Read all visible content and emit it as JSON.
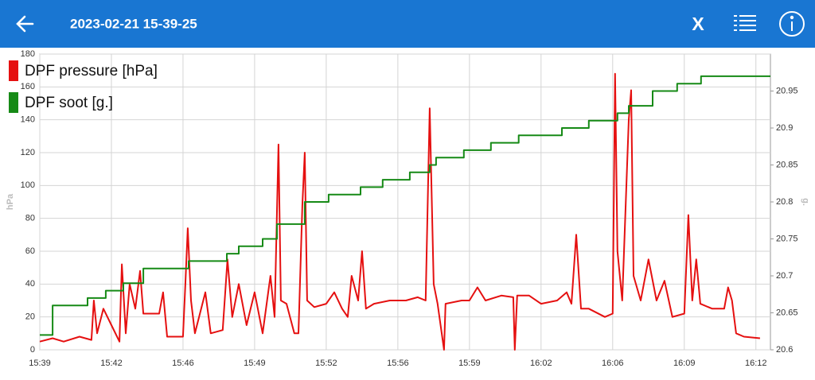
{
  "header": {
    "title": "2023-02-21 15-39-25",
    "close": "X"
  },
  "chart_data": {
    "type": "line",
    "ylabel": "hPa",
    "y2label": "g.",
    "xlim": [
      939,
      972.67
    ],
    "xticks": [
      {
        "value": 939,
        "label": "15:39"
      },
      {
        "value": 942.3,
        "label": "15:42"
      },
      {
        "value": 945.6,
        "label": "15:46"
      },
      {
        "value": 948.9,
        "label": "15:49"
      },
      {
        "value": 952.2,
        "label": "15:52"
      },
      {
        "value": 955.5,
        "label": "15:56"
      },
      {
        "value": 958.8,
        "label": "15:59"
      },
      {
        "value": 962.1,
        "label": "16:02"
      },
      {
        "value": 965.4,
        "label": "16:06"
      },
      {
        "value": 968.7,
        "label": "16:09"
      },
      {
        "value": 972.0,
        "label": "16:12"
      }
    ],
    "ylim": [
      0,
      180
    ],
    "yticks": [
      0,
      20,
      40,
      60,
      80,
      100,
      120,
      140,
      160,
      180
    ],
    "y2lim": [
      20.6,
      21.0
    ],
    "y2ticks": [
      20.6,
      20.65,
      20.7,
      20.75,
      20.8,
      20.85,
      20.9,
      20.95
    ],
    "grid": true,
    "legend": "top-left",
    "series": [
      {
        "name": "DPF pressure [hPa]",
        "color": "#e51010",
        "x": [
          939.0,
          939.59,
          940.1,
          940.83,
          941.38,
          941.49,
          941.64,
          941.93,
          942.3,
          942.67,
          942.78,
          942.96,
          943.14,
          943.4,
          943.62,
          943.77,
          944.5,
          944.68,
          944.87,
          945.6,
          945.71,
          945.82,
          945.97,
          946.15,
          946.63,
          946.88,
          947.43,
          947.65,
          947.87,
          948.17,
          948.53,
          948.9,
          949.27,
          949.63,
          949.82,
          950.0,
          950.11,
          950.37,
          950.73,
          950.92,
          951.1,
          951.21,
          951.32,
          951.65,
          952.2,
          952.57,
          952.93,
          953.19,
          953.37,
          953.67,
          953.85,
          954.03,
          954.4,
          955.13,
          955.87,
          956.42,
          956.78,
          956.97,
          957.15,
          957.33,
          957.63,
          957.7,
          958.44,
          958.8,
          959.17,
          959.54,
          960.27,
          960.82,
          960.89,
          961.0,
          961.55,
          962.1,
          962.84,
          963.28,
          963.5,
          963.72,
          963.94,
          964.3,
          965.04,
          965.4,
          965.51,
          965.62,
          965.84,
          966.14,
          966.25,
          966.36,
          966.69,
          967.05,
          967.42,
          967.79,
          968.15,
          968.7,
          968.89,
          969.07,
          969.25,
          969.44,
          969.99,
          970.54,
          970.72,
          970.9,
          971.09,
          971.45,
          972.19
        ],
        "values": [
          5,
          7,
          5,
          8,
          6,
          30,
          10,
          25,
          15,
          5,
          52,
          10,
          40,
          25,
          48,
          22,
          22,
          35,
          8,
          8,
          40,
          74,
          30,
          10,
          35,
          10,
          12,
          55,
          20,
          40,
          15,
          35,
          10,
          45,
          20,
          125,
          30,
          28,
          10,
          10,
          88,
          120,
          30,
          26,
          28,
          35,
          25,
          20,
          45,
          30,
          60,
          25,
          28,
          30,
          30,
          32,
          30,
          147,
          40,
          28,
          0,
          28,
          30,
          30,
          38,
          30,
          33,
          32,
          0,
          33,
          33,
          28,
          30,
          35,
          28,
          70,
          25,
          25,
          20,
          22,
          168,
          60,
          30,
          140,
          158,
          45,
          30,
          55,
          30,
          42,
          20,
          22,
          82,
          30,
          55,
          28,
          25,
          25,
          38,
          30,
          10,
          8,
          7
        ]
      },
      {
        "name": "DPF soot [g.]",
        "color": "#168a16",
        "axis": "y2",
        "x": [
          939,
          939.59,
          939.59,
          941.2,
          941.2,
          942.04,
          942.04,
          942.85,
          942.85,
          943.77,
          943.77,
          945.86,
          945.86,
          947.62,
          947.62,
          948.17,
          948.17,
          949.27,
          949.27,
          949.93,
          949.93,
          951.21,
          951.21,
          952.31,
          952.31,
          953.78,
          953.78,
          954.8,
          954.8,
          956.05,
          956.05,
          956.97,
          956.97,
          957.26,
          957.26,
          958.54,
          958.54,
          959.79,
          959.79,
          961.07,
          961.07,
          963.06,
          963.06,
          964.3,
          964.3,
          965.62,
          965.62,
          966.14,
          966.14,
          967.24,
          967.24,
          968.37,
          968.37,
          969.47,
          969.47,
          972.67
        ],
        "values": [
          20.62,
          20.62,
          20.66,
          20.66,
          20.67,
          20.67,
          20.68,
          20.68,
          20.69,
          20.69,
          20.71,
          20.71,
          20.72,
          20.72,
          20.73,
          20.73,
          20.74,
          20.74,
          20.75,
          20.75,
          20.77,
          20.77,
          20.8,
          20.8,
          20.81,
          20.81,
          20.82,
          20.82,
          20.83,
          20.83,
          20.84,
          20.84,
          20.85,
          20.85,
          20.86,
          20.86,
          20.87,
          20.87,
          20.88,
          20.88,
          20.89,
          20.89,
          20.9,
          20.9,
          20.91,
          20.91,
          20.92,
          20.92,
          20.93,
          20.93,
          20.95,
          20.95,
          20.96,
          20.96,
          20.97,
          20.97
        ]
      }
    ]
  }
}
